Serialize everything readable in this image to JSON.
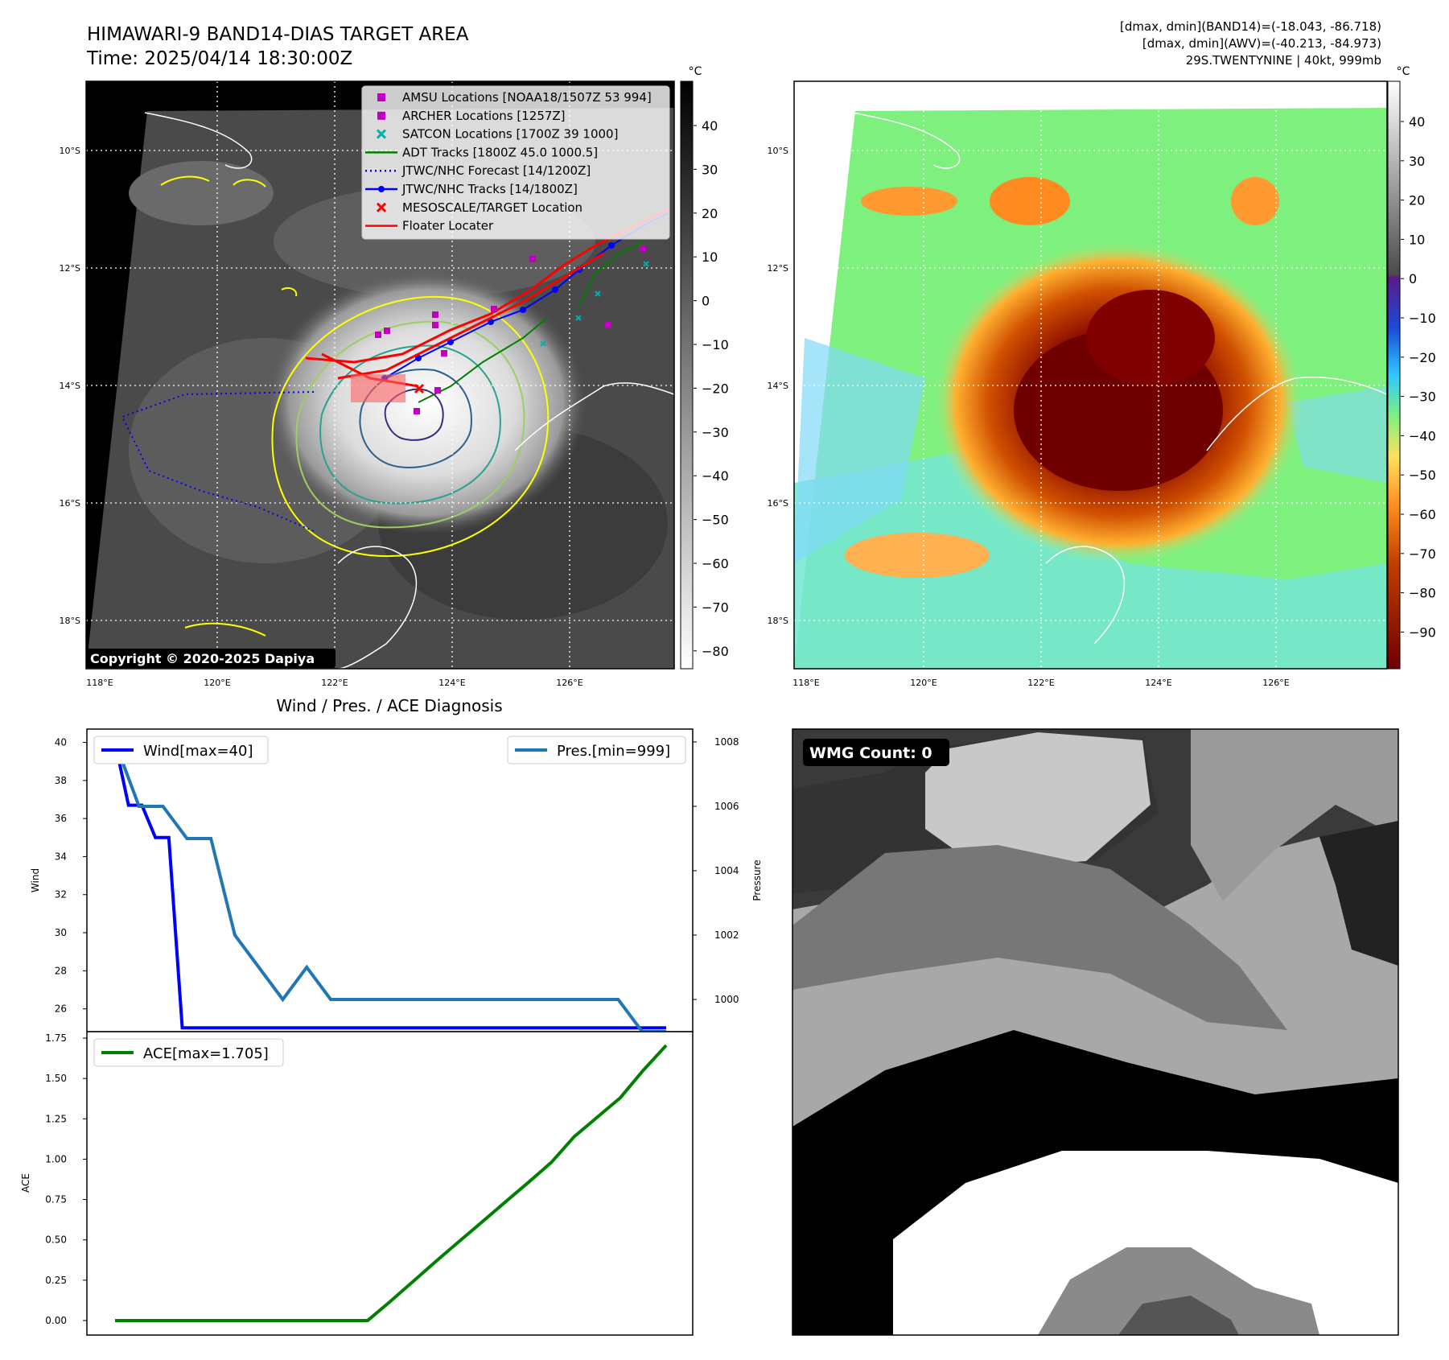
{
  "header": {
    "title_line1": "HIMAWARI-9 BAND14-DIAS TARGET AREA",
    "title_line2": "Time: 2025/04/14 18:30:00Z",
    "info_line1": "[dmax, dmin](BAND14)=(-18.043, -86.718)",
    "info_line2": "[dmax, dmin](AWV)=(-40.213, -84.973)",
    "info_line3": "29S.TWENTYNINE | 40kt, 999mb"
  },
  "panels": {
    "ir_gray": {
      "copyright": "Copyright © 2020-2025 Dapiya",
      "colorbar_unit": "°C",
      "colorbar_ticks": [
        "40",
        "30",
        "20",
        "10",
        "0",
        "−10",
        "−20",
        "−30",
        "−40",
        "−50",
        "−60",
        "−70",
        "−80"
      ],
      "lat_labels": [
        "10°S",
        "12°S",
        "14°S",
        "16°S",
        "18°S"
      ],
      "lon_labels": [
        "118°E",
        "120°E",
        "122°E",
        "124°E",
        "126°E"
      ],
      "legend": [
        {
          "label": "AMSU Locations [NOAA18/1507Z 53 994]",
          "color": "#c000c0",
          "marker": "square"
        },
        {
          "label": "ARCHER Locations [1257Z]",
          "color": "#c000c0",
          "marker": "square"
        },
        {
          "label": "SATCON Locations [1700Z 39 1000]",
          "color": "#00b0b0",
          "marker": "x"
        },
        {
          "label": "ADT Tracks [1800Z 45.0 1000.5]",
          "color": "#008000",
          "marker": "line"
        },
        {
          "label": "JTWC/NHC Forecast [14/1200Z]",
          "color": "#0000ff",
          "marker": "dotted"
        },
        {
          "label": "JTWC/NHC Tracks [14/1800Z]",
          "color": "#0000ff",
          "marker": "line-dot"
        },
        {
          "label": "MESOSCALE/TARGET Location",
          "color": "#ff0000",
          "marker": "x"
        },
        {
          "label": "Floater Locater",
          "color": "#ff0000",
          "marker": "line"
        }
      ]
    },
    "ir_color": {
      "colorbar_unit": "°C",
      "colorbar_ticks": [
        "40",
        "30",
        "20",
        "10",
        "0",
        "−10",
        "−20",
        "−30",
        "−40",
        "−50",
        "−60",
        "−70",
        "−80",
        "−90"
      ],
      "lat_labels": [
        "10°S",
        "12°S",
        "14°S",
        "16°S",
        "18°S"
      ],
      "lon_labels": [
        "118°E",
        "120°E",
        "122°E",
        "124°E",
        "126°E"
      ]
    },
    "wmg": {
      "badge": "WMG Count: 0"
    }
  },
  "chart_data": [
    {
      "type": "line",
      "title": "Wind / Pres. / ACE Diagnosis",
      "ylabel": "Wind",
      "y2label": "Pressure",
      "ylim": [
        24.8,
        40.7
      ],
      "y2lim": [
        999.0,
        1008.4
      ],
      "yticks": [
        26,
        28,
        30,
        32,
        34,
        36,
        38,
        40
      ],
      "y2ticks": [
        1000,
        1002,
        1004,
        1006,
        1008
      ],
      "series": [
        {
          "name": "Wind[max=40]",
          "axis": "left",
          "color": "#0000ff",
          "values": [
            40,
            36.7,
            36.7,
            35,
            35,
            25,
            25,
            25,
            25,
            25,
            25,
            25,
            25,
            25,
            25,
            25,
            25,
            25,
            25,
            25,
            25,
            25,
            25,
            25,
            25,
            25,
            25,
            25,
            25,
            25,
            25,
            25,
            25,
            25,
            25,
            25,
            25,
            25,
            25,
            25,
            25,
            25
          ]
        },
        {
          "name": "Pres.[min=999]",
          "axis": "right",
          "color": "#1f77b4",
          "values": [
            1008,
            1006,
            1006,
            1005,
            1005,
            1002,
            1001,
            1000,
            1001,
            1000,
            1000,
            1000,
            1000,
            1000,
            1000,
            1000,
            1000,
            1000,
            1000,
            1000,
            1000,
            1000,
            999,
            999
          ]
        }
      ]
    },
    {
      "type": "line",
      "ylabel": "ACE",
      "ylim": [
        -0.09,
        1.79
      ],
      "yticks": [
        "0.00",
        "0.25",
        "0.50",
        "0.75",
        "1.00",
        "1.25",
        "1.50",
        "1.75"
      ],
      "series": [
        {
          "name": "ACE[max=1.705]",
          "color": "#008000",
          "values": [
            0,
            0,
            0,
            0,
            0,
            0,
            0,
            0,
            0,
            0,
            0,
            0,
            0.12,
            0.245,
            0.37,
            0.492,
            0.613,
            0.735,
            0.856,
            0.98,
            1.14,
            1.26,
            1.38,
            1.55,
            1.705
          ]
        }
      ]
    }
  ]
}
